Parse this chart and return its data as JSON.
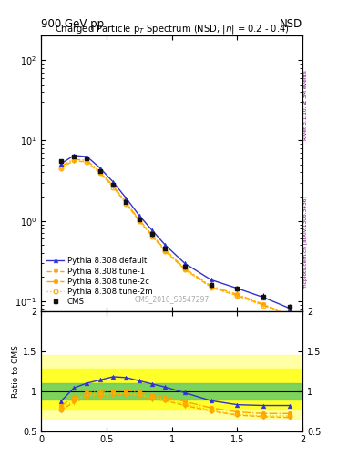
{
  "title_top_left": "900 GeV pp",
  "title_top_right": "NSD",
  "plot_title": "Charged Particle p$_T$ Spectrum (NSD, $|\\eta|$ = 0.2 - 0.4)",
  "watermark": "CMS_2010_S8547297",
  "right_label_top": "Rivet 3.1.10, ≥ 3M events",
  "right_label_bot": "mcplots.cern.ch [arXiv:1306.3436]",
  "pt_cms": [
    0.15,
    0.25,
    0.35,
    0.45,
    0.55,
    0.65,
    0.75,
    0.85,
    0.95,
    1.1,
    1.3,
    1.5,
    1.7,
    1.9
  ],
  "val_cms": [
    5.5,
    6.3,
    6.0,
    4.2,
    2.8,
    1.7,
    1.05,
    0.68,
    0.45,
    0.27,
    0.16,
    0.145,
    0.115,
    0.085
  ],
  "err_cms": [
    0.25,
    0.25,
    0.25,
    0.18,
    0.13,
    0.08,
    0.055,
    0.04,
    0.025,
    0.018,
    0.012,
    0.012,
    0.01,
    0.007
  ],
  "pt_py": [
    0.15,
    0.25,
    0.35,
    0.45,
    0.55,
    0.65,
    0.75,
    0.85,
    0.95,
    1.1,
    1.3,
    1.5,
    1.7,
    1.9
  ],
  "val_default": [
    5.1,
    6.5,
    6.3,
    4.55,
    3.05,
    1.92,
    1.17,
    0.76,
    0.5,
    0.295,
    0.185,
    0.145,
    0.112,
    0.082
  ],
  "val_tune1": [
    4.55,
    5.55,
    5.4,
    3.95,
    2.65,
    1.65,
    1.0,
    0.645,
    0.42,
    0.248,
    0.15,
    0.118,
    0.09,
    0.065
  ],
  "val_tune2c": [
    4.75,
    5.85,
    5.65,
    4.08,
    2.73,
    1.7,
    1.03,
    0.665,
    0.435,
    0.255,
    0.155,
    0.122,
    0.092,
    0.067
  ],
  "val_tune2m": [
    4.55,
    5.65,
    5.45,
    3.93,
    2.62,
    1.63,
    0.99,
    0.64,
    0.418,
    0.248,
    0.149,
    0.116,
    0.088,
    0.064
  ],
  "ratio_default": [
    0.87,
    1.04,
    1.1,
    1.14,
    1.18,
    1.17,
    1.13,
    1.09,
    1.05,
    0.98,
    0.88,
    0.83,
    0.82,
    0.82
  ],
  "ratio_tune1": [
    0.76,
    0.86,
    0.92,
    0.93,
    0.95,
    0.96,
    0.94,
    0.9,
    0.88,
    0.82,
    0.75,
    0.7,
    0.68,
    0.67
  ],
  "ratio_tune2c": [
    0.81,
    0.93,
    0.98,
    0.99,
    1.01,
    1.01,
    0.99,
    0.95,
    0.93,
    0.87,
    0.79,
    0.74,
    0.72,
    0.72
  ],
  "ratio_tune2m": [
    0.77,
    0.89,
    0.95,
    0.96,
    0.97,
    0.97,
    0.95,
    0.92,
    0.9,
    0.84,
    0.76,
    0.71,
    0.69,
    0.69
  ],
  "color_cms": "#111111",
  "color_default": "#3333cc",
  "color_tune": "#ffa500",
  "color_tune2m": "#ffcc00",
  "xlim": [
    0.0,
    2.0
  ],
  "ylim_main": [
    0.075,
    200
  ],
  "ylim_ratio": [
    0.5,
    2.0
  ],
  "band_yellow_outer_lo": 0.65,
  "band_yellow_outer_hi": 1.45,
  "band_yellow_lo": 0.77,
  "band_yellow_hi": 1.28,
  "band_green_lo": 0.9,
  "band_green_hi": 1.1
}
